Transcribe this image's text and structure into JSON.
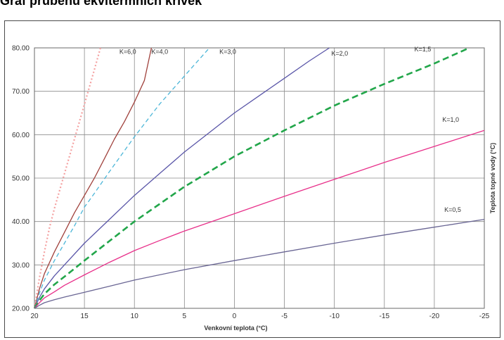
{
  "page": {
    "title": "Graf průběhu ekvitermních křivek"
  },
  "chart_data": {
    "type": "line",
    "title": "Graf průběhu ekvitermních křivek",
    "xlabel": "Venkovní teplota (°C)",
    "ylabel": "Teplota topné vody (°C)",
    "xlim": [
      20,
      -25
    ],
    "ylim": [
      20,
      80
    ],
    "x_ticks": [
      20,
      15,
      10,
      5,
      0,
      -5,
      -10,
      -15,
      -20,
      -25
    ],
    "x_tick_labels": [
      "20",
      "15",
      "10",
      "5",
      "0",
      "-5",
      "-10",
      "-15",
      "-20",
      "-25"
    ],
    "y_ticks": [
      20,
      30,
      40,
      50,
      60,
      70,
      80
    ],
    "y_tick_labels": [
      "20.00",
      "30.00",
      "40.00",
      "50.00",
      "60.00",
      "70.00",
      "80.00"
    ],
    "grid": true,
    "series": [
      {
        "name": "K=6,0",
        "color": "#f4a0a0",
        "style": "dotted",
        "x": [
          20,
          19.5,
          19,
          18.5,
          18,
          17,
          16,
          15,
          14,
          13.4
        ],
        "y": [
          20,
          27,
          33,
          38.5,
          43,
          51,
          59,
          67,
          75,
          80
        ]
      },
      {
        "name": "K=4,0",
        "color": "#a0413c",
        "style": "solid",
        "x": [
          20,
          19.5,
          19,
          18,
          17,
          16,
          15,
          14,
          13,
          12,
          11,
          10,
          9,
          8.3
        ],
        "y": [
          20,
          24.5,
          28,
          33,
          37.5,
          42,
          46,
          50,
          54.5,
          59,
          63,
          67.5,
          72.5,
          80
        ]
      },
      {
        "name": "K=3,0",
        "color": "#4cb6d8",
        "style": "dashed",
        "x": [
          20,
          19.5,
          19,
          18,
          17,
          16,
          15,
          14,
          12.5,
          10,
          7.5,
          5,
          2.5
        ],
        "y": [
          20,
          23.5,
          26.5,
          31,
          35,
          39,
          43.3,
          46.5,
          51.5,
          59.5,
          67,
          73.5,
          80
        ]
      },
      {
        "name": "K=2,0",
        "color": "#5a56a8",
        "style": "solid",
        "x": [
          20,
          19.5,
          19,
          18,
          17,
          15,
          12.5,
          10,
          7.5,
          5,
          2.5,
          0,
          -2.5,
          -5,
          -7.5,
          -9.5
        ],
        "y": [
          20,
          22.5,
          24.5,
          27.5,
          30,
          35,
          40.5,
          46,
          51,
          56,
          60.5,
          65,
          69,
          73,
          77,
          80
        ]
      },
      {
        "name": "K=1,5",
        "color": "#22a64a",
        "style": "dashed",
        "x": [
          20,
          19.5,
          19,
          18,
          17,
          15,
          12.5,
          10,
          7.5,
          5,
          2.5,
          0,
          -5,
          -10,
          -15,
          -20,
          -23.5
        ],
        "y": [
          20,
          21.8,
          23.3,
          25.5,
          27.3,
          31,
          35.5,
          40,
          44,
          48,
          51.5,
          55,
          61,
          66.7,
          71.7,
          76.4,
          80
        ]
      },
      {
        "name": "K=1,0",
        "color": "#e8308a",
        "style": "solid",
        "x": [
          20,
          19.5,
          19,
          18,
          17,
          15,
          12.5,
          10,
          7.5,
          5,
          0,
          -5,
          -10,
          -15,
          -20,
          -25
        ],
        "y": [
          20,
          21.3,
          22.4,
          23.8,
          25.3,
          27.7,
          30.6,
          33.3,
          35.6,
          37.8,
          41.8,
          45.8,
          49.7,
          53.6,
          57.3,
          61
        ]
      },
      {
        "name": "K=0,5",
        "color": "#6a6694",
        "style": "solid",
        "x": [
          20,
          19.5,
          19,
          18,
          17,
          15,
          12.5,
          10,
          5,
          0,
          -5,
          -10,
          -15,
          -20,
          -25
        ],
        "y": [
          20,
          20.7,
          21.3,
          22,
          22.6,
          23.7,
          25.1,
          26.5,
          28.9,
          31,
          33,
          35,
          36.9,
          38.7,
          40.5
        ]
      }
    ]
  }
}
